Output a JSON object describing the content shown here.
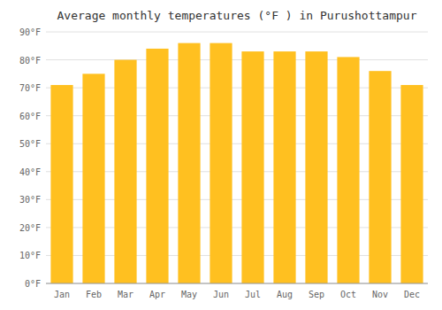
{
  "chart_data": {
    "type": "bar",
    "title": "Average monthly temperatures (°F ) in Purushottampur",
    "categories": [
      "Jan",
      "Feb",
      "Mar",
      "Apr",
      "May",
      "Jun",
      "Jul",
      "Aug",
      "Sep",
      "Oct",
      "Nov",
      "Dec"
    ],
    "values": [
      71,
      75,
      80,
      84,
      86,
      86,
      83,
      83,
      83,
      81,
      76,
      71
    ],
    "color": "#FFC020",
    "ylim": [
      0,
      90
    ],
    "yticks": [
      {
        "value": 0,
        "label": "0°F"
      },
      {
        "value": 10,
        "label": "10°F"
      },
      {
        "value": 20,
        "label": "20°F"
      },
      {
        "value": 30,
        "label": "30°F"
      },
      {
        "value": 40,
        "label": "40°F"
      },
      {
        "value": 50,
        "label": "50°F"
      },
      {
        "value": 60,
        "label": "60°F"
      },
      {
        "value": 70,
        "label": "70°F"
      },
      {
        "value": 80,
        "label": "80°F"
      },
      {
        "value": 90,
        "label": "90°F"
      }
    ],
    "grid": true
  }
}
